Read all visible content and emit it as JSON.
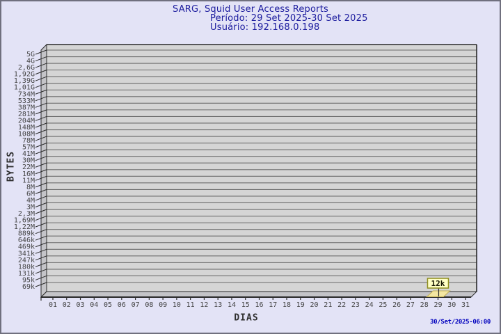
{
  "colors": {
    "page_bg": "#E3E3F6",
    "border": "#70707E",
    "plot_bg": "#D5D5D5",
    "wall": "#C4C4C8",
    "gridline": "#6C6C6C",
    "frame": "#2A2A2A",
    "title_text": "#1B1B9E",
    "timestamp_text": "#0000BE",
    "tick_text": "#454545",
    "annotation_bg": "#FFFFC5",
    "annotation_border": "#8F8F1F",
    "bar_fill": "#F3E6A2",
    "bar_edge": "#C0AE52"
  },
  "footer": {
    "timestamp": "30/Set/2025-06:00"
  },
  "chart_data": {
    "type": "bar",
    "title": "SARG, Squid User Access Reports",
    "subtitle_period": "Período: 29 Set 2025-30 Set 2025",
    "subtitle_user": "Usuário: 192.168.0.198",
    "xlabel": "DIAS",
    "ylabel": "BYTES",
    "y_scale": "log",
    "grid": true,
    "style": "3d-bar",
    "y_tick_labels": [
      "5G",
      "4G",
      "2,6G",
      "1,92G",
      "1,39G",
      "1,01G",
      "734M",
      "533M",
      "387M",
      "281M",
      "204M",
      "148M",
      "108M",
      "78M",
      "57M",
      "41M",
      "30M",
      "22M",
      "16M",
      "11M",
      "8M",
      "6M",
      "4M",
      "3M",
      "2,3M",
      "1,69M",
      "1,22M",
      "889k",
      "646k",
      "469k",
      "341k",
      "247k",
      "180k",
      "131k",
      "95k",
      "69k"
    ],
    "x_tick_labels": [
      "01",
      "02",
      "03",
      "04",
      "05",
      "06",
      "07",
      "08",
      "09",
      "10",
      "11",
      "12",
      "13",
      "14",
      "15",
      "16",
      "17",
      "18",
      "19",
      "20",
      "21",
      "22",
      "23",
      "24",
      "25",
      "26",
      "27",
      "28",
      "29",
      "30",
      "31"
    ],
    "points": [
      {
        "day": "29",
        "value": "12k"
      }
    ]
  }
}
